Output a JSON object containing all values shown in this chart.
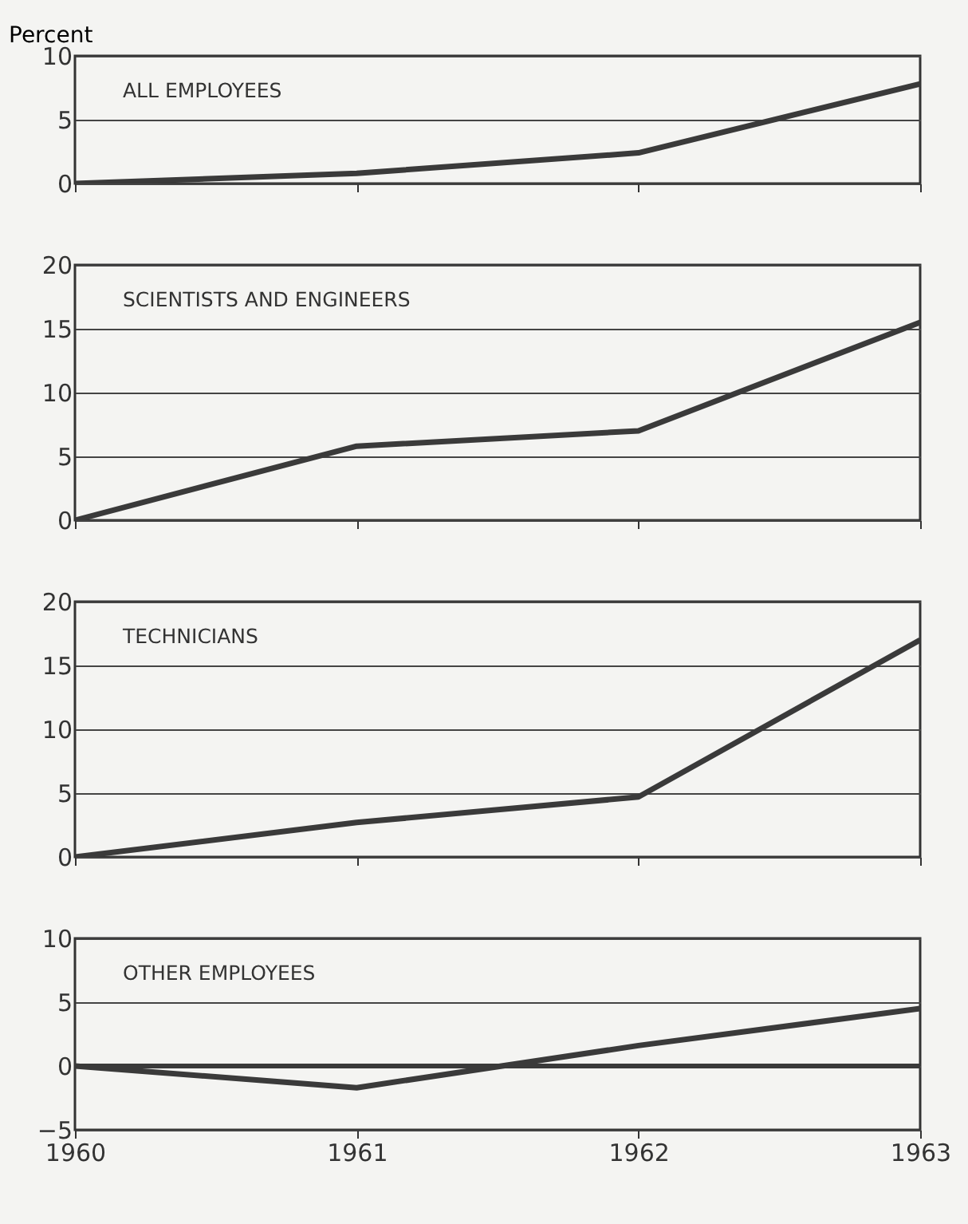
{
  "chart_data": [
    {
      "type": "line",
      "title": "ALL EMPLOYEES",
      "ylabel": "Percent",
      "x": [
        1960,
        1961,
        1962,
        1963
      ],
      "series": [
        {
          "color": "#3a3a3a",
          "values": [
            0,
            0.8,
            2.4,
            7.8
          ]
        }
      ],
      "xlim": [
        1960,
        1963
      ],
      "xticks": [
        1960,
        1961,
        1962,
        1963
      ],
      "ylim": [
        0,
        10
      ],
      "yticks": [
        0,
        5,
        10
      ],
      "grid": "y",
      "tick_labels": "y"
    },
    {
      "type": "line",
      "title": "SCIENTISTS AND ENGINEERS",
      "x": [
        1960,
        1961,
        1962,
        1963
      ],
      "series": [
        {
          "color": "#3a3a3a",
          "values": [
            0,
            5.8,
            7.0,
            15.5
          ]
        }
      ],
      "xlim": [
        1960,
        1963
      ],
      "xticks": [
        1960,
        1961,
        1962,
        1963
      ],
      "ylim": [
        0,
        20
      ],
      "yticks": [
        0,
        5,
        10,
        15,
        20
      ],
      "grid": "y",
      "tick_labels": "y"
    },
    {
      "type": "line",
      "title": "TECHNICIANS",
      "x": [
        1960,
        1961,
        1962,
        1963
      ],
      "series": [
        {
          "color": "#3a3a3a",
          "values": [
            0,
            2.7,
            4.7,
            17.0
          ]
        }
      ],
      "xlim": [
        1960,
        1963
      ],
      "xticks": [
        1960,
        1961,
        1962,
        1963
      ],
      "ylim": [
        0,
        20
      ],
      "yticks": [
        0,
        5,
        10,
        15,
        20
      ],
      "grid": "y",
      "tick_labels": "y"
    },
    {
      "type": "line",
      "title": "OTHER EMPLOYEES",
      "x": [
        1960,
        1961,
        1962,
        1963
      ],
      "series": [
        {
          "color": "#3a3a3a",
          "values": [
            0,
            -1.7,
            1.6,
            4.5
          ]
        }
      ],
      "xlim": [
        1960,
        1963
      ],
      "xticks": [
        1960,
        1961,
        1962,
        1963
      ],
      "ylim": [
        -5,
        10
      ],
      "yticks": [
        -5,
        0,
        5,
        10
      ],
      "grid": "y",
      "ref_lines": [
        {
          "axis": "y",
          "value": 0,
          "color": "#3a3a3a"
        }
      ]
    }
  ]
}
